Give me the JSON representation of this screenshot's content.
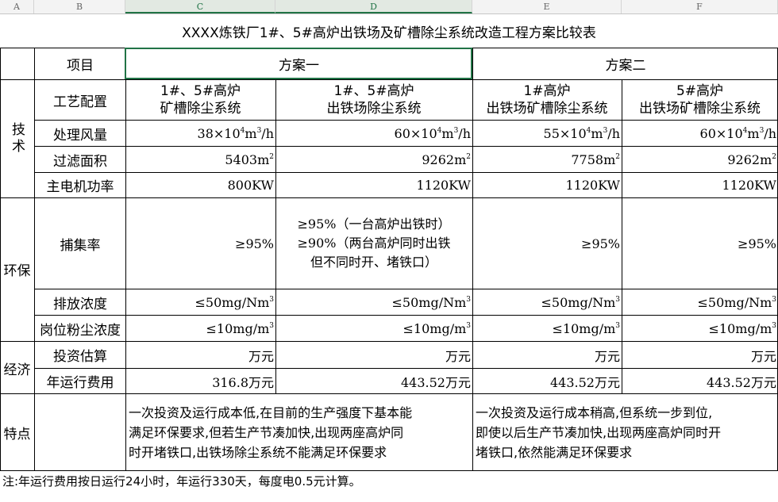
{
  "column_headers": [
    "A",
    "B",
    "C",
    "D",
    "E",
    "F"
  ],
  "title": "XXXX炼铁厂1#、5#高炉出铁场及矿槽除尘系统改造工程方案比较表",
  "header": {
    "item": "项目",
    "plan1": "方案一",
    "plan2": "方案二"
  },
  "groups": {
    "tech": "技术",
    "env": "环保",
    "econ": "经济",
    "feature": "特点"
  },
  "rows": {
    "process": {
      "label": "工艺配置",
      "c": [
        "1#、5#高炉",
        "矿槽除尘系统"
      ],
      "d": [
        "1#、5#高炉",
        "出铁场除尘系统"
      ],
      "e": [
        "1#高炉",
        "出铁场矿槽除尘系统"
      ],
      "f": [
        "5#高炉",
        "出铁场矿槽除尘系统"
      ]
    },
    "airflow": {
      "label": "处理风量",
      "c": "38×10",
      "d": "60×10",
      "e": "55×10",
      "f": "60×10",
      "sup1": "4",
      "mid": "m",
      "sup2": "3",
      "unit": "/h"
    },
    "area": {
      "label": "过滤面积",
      "c": "5403m",
      "d": "9262m",
      "e": "7758m",
      "f": "9262m",
      "sup": "2"
    },
    "power": {
      "label": "主电机功率",
      "c": "800KW",
      "d": "1120KW",
      "e": "1120KW",
      "f": "1120KW"
    },
    "capture": {
      "label": "捕集率",
      "c": "≥95%",
      "d": [
        "≥95%（一台高炉出铁时）",
        "≥90%（两台高炉同时出铁",
        "但不同时开、堵铁口）"
      ],
      "e": "≥95%",
      "f": "≥95%"
    },
    "emission": {
      "label": "排放浓度",
      "value": "≤50mg/Nm",
      "sup": "3"
    },
    "dust": {
      "label": "岗位粉尘浓度",
      "value": "≤10mg/m",
      "sup": "3"
    },
    "invest": {
      "label": "投资估算",
      "value": "万元"
    },
    "annual": {
      "label": "年运行费用",
      "c": "316.8万元",
      "d": "443.52万元",
      "e": "443.52万元",
      "f": "443.52万元"
    },
    "feature": {
      "plan1": [
        "一次投资及运行成本低,在目前的生产强度下基本能",
        "满足环保要求,但若生产节凑加快,出现两座高炉同",
        "时开堵铁口,出铁场除尘系统不能满足环保要求"
      ],
      "plan2": [
        "一次投资及运行成本稍高,但系统一步到位,",
        "即使以后生产节凑加快,出现两座高炉同时开",
        "堵铁口,依然能满足环保要求"
      ]
    }
  },
  "note": "注:年运行费用按日运行24小时，年运行330天，每度电0.5元计算。",
  "colors": {
    "selection": "#217346",
    "header_bg": "#f3f3f3"
  }
}
